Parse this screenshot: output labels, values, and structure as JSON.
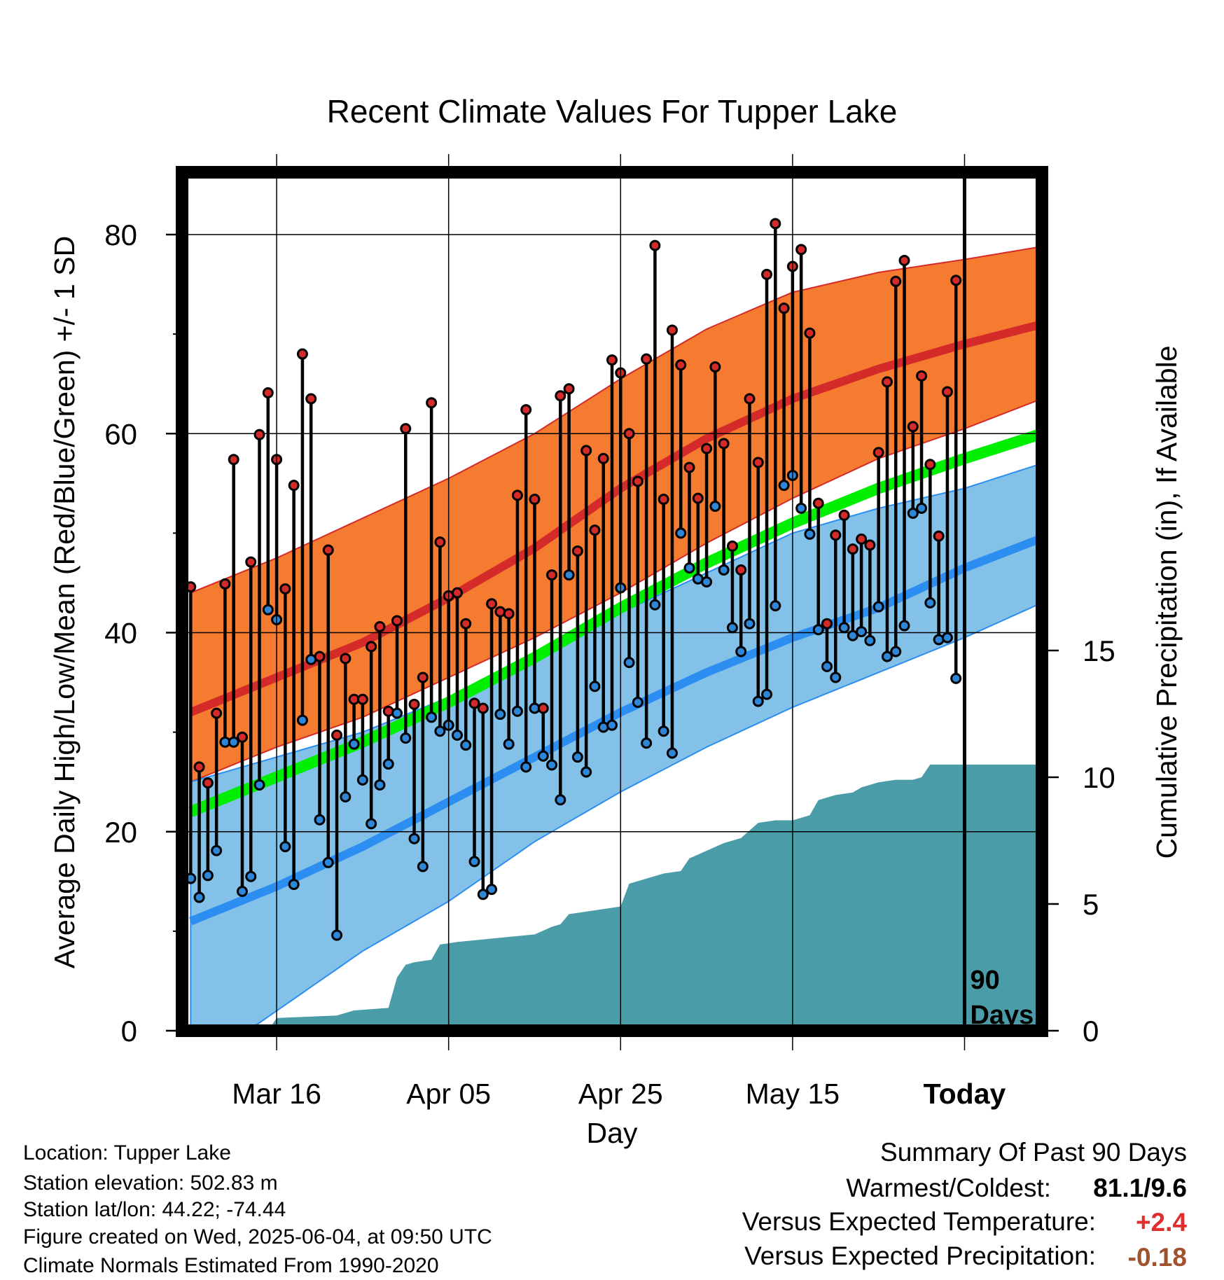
{
  "chart_data": {
    "type": "line",
    "title": "Recent Climate Values For Tupper Lake",
    "xlabel": "Day",
    "ylabel": "Average Daily High/Low/Mean (Red/Blue/Green) +/- 1 SD",
    "y2label": "Cumulative Precipitation (in), If Available",
    "ylim": [
      0,
      80
    ],
    "y2lim": [
      0,
      15
    ],
    "yticks": [
      "0",
      "20",
      "40",
      "60",
      "80"
    ],
    "y2ticks": [
      "0",
      "5",
      "10",
      "15"
    ],
    "xtick_labels": [
      "Mar 16",
      "Apr 05",
      "Apr 25",
      "May 15",
      "Today"
    ],
    "xtick_days": [
      -80,
      -60,
      -40,
      -20,
      0
    ],
    "x_range_days": [
      -91,
      9
    ],
    "today_marker": "90\nDays",
    "grid": true,
    "colors": {
      "high_sd_band": "#f47b2f",
      "high_mean": "#d42a2a",
      "low_sd_band": "#83c1e8",
      "low_mean": "#2b8ef0",
      "mean_temp": "#00ee00",
      "precip": "#4a9ca8",
      "high_point": "#d42a2a",
      "low_point": "#2e86d8"
    },
    "normal_high": {
      "days": [
        -90,
        -80,
        -70,
        -60,
        -50,
        -40,
        -30,
        -20,
        -10,
        0,
        9
      ],
      "mean": [
        32,
        35.5,
        39,
        43.5,
        48.5,
        54.5,
        59.5,
        63.5,
        66.5,
        69,
        71
      ],
      "upper": [
        44,
        47.5,
        51.5,
        55.5,
        60,
        65.5,
        70.5,
        74.2,
        76.2,
        77.5,
        78.8
      ],
      "lower": [
        25,
        28.5,
        31.5,
        35.5,
        39.5,
        44,
        49,
        53.5,
        57.5,
        60.5,
        63.5
      ]
    },
    "normal_mean": {
      "days": [
        -90,
        -80,
        -70,
        -60,
        -50,
        -40,
        -30,
        -20,
        -10,
        0,
        9
      ],
      "values": [
        22,
        25.5,
        29,
        33,
        37.5,
        42.5,
        47,
        51,
        54.5,
        57.5,
        60
      ]
    },
    "normal_low": {
      "days": [
        -90,
        -80,
        -70,
        -60,
        -50,
        -40,
        -30,
        -20,
        -10,
        0,
        9
      ],
      "mean": [
        11,
        14.5,
        18.5,
        23,
        27.5,
        32,
        36,
        39.5,
        42.5,
        46.5,
        49.5
      ],
      "upper": [
        25,
        27.5,
        30,
        33.5,
        37.5,
        42,
        46,
        50,
        52.5,
        54.5,
        57
      ],
      "lower": [
        -4,
        2,
        8,
        13,
        19,
        24,
        28.5,
        32.5,
        36,
        39.5,
        43
      ]
    },
    "daily": [
      {
        "d": -90,
        "hi": 44.6,
        "lo": 15.3
      },
      {
        "d": -89,
        "hi": 26.5,
        "lo": 13.4
      },
      {
        "d": -88,
        "hi": 24.9,
        "lo": 15.6
      },
      {
        "d": -87,
        "hi": 31.9,
        "lo": 18.1
      },
      {
        "d": -86,
        "hi": 44.9,
        "lo": 29.0
      },
      {
        "d": -85,
        "hi": 57.4,
        "lo": 29.0
      },
      {
        "d": -84,
        "hi": 29.5,
        "lo": 14.0
      },
      {
        "d": -83,
        "hi": 47.1,
        "lo": 15.5
      },
      {
        "d": -82,
        "hi": 59.9,
        "lo": 24.7
      },
      {
        "d": -81,
        "hi": 64.1,
        "lo": 42.3
      },
      {
        "d": -80,
        "hi": 57.4,
        "lo": 41.3
      },
      {
        "d": -79,
        "hi": 44.4,
        "lo": 18.5
      },
      {
        "d": -78,
        "hi": 54.8,
        "lo": 14.7
      },
      {
        "d": -77,
        "hi": 68.0,
        "lo": 31.2
      },
      {
        "d": -76,
        "hi": 63.5,
        "lo": 37.3
      },
      {
        "d": -75,
        "hi": 37.6,
        "lo": 21.2
      },
      {
        "d": -74,
        "hi": 48.3,
        "lo": 16.9
      },
      {
        "d": -73,
        "hi": 29.7,
        "lo": 9.6
      },
      {
        "d": -72,
        "hi": 37.4,
        "lo": 23.5
      },
      {
        "d": -71,
        "hi": 33.3,
        "lo": 28.8
      },
      {
        "d": -70,
        "hi": 33.3,
        "lo": 25.2
      },
      {
        "d": -69,
        "hi": 38.6,
        "lo": 20.8
      },
      {
        "d": -68,
        "hi": 40.6,
        "lo": 24.7
      },
      {
        "d": -67,
        "hi": 32.1,
        "lo": 26.8
      },
      {
        "d": -66,
        "hi": 41.2,
        "lo": 31.9
      },
      {
        "d": -65,
        "hi": 60.5,
        "lo": 29.4
      },
      {
        "d": -64,
        "hi": 32.8,
        "lo": 19.3
      },
      {
        "d": -63,
        "hi": 35.5,
        "lo": 16.5
      },
      {
        "d": -62,
        "hi": 63.1,
        "lo": 31.5
      },
      {
        "d": -61,
        "hi": 49.1,
        "lo": 30.1
      },
      {
        "d": -60,
        "hi": 43.7,
        "lo": 30.7
      },
      {
        "d": -59,
        "hi": 44.0,
        "lo": 29.7
      },
      {
        "d": -58,
        "hi": 40.9,
        "lo": 28.7
      },
      {
        "d": -57,
        "hi": 32.9,
        "lo": 17.0
      },
      {
        "d": -56,
        "hi": 32.4,
        "lo": 13.7
      },
      {
        "d": -55,
        "hi": 42.9,
        "lo": 14.2
      },
      {
        "d": -54,
        "hi": 42.1,
        "lo": 31.8
      },
      {
        "d": -53,
        "hi": 41.9,
        "lo": 28.8
      },
      {
        "d": -52,
        "hi": 53.8,
        "lo": 32.1
      },
      {
        "d": -51,
        "hi": 62.4,
        "lo": 26.5
      },
      {
        "d": -50,
        "hi": 53.4,
        "lo": 32.4
      },
      {
        "d": -49,
        "hi": 32.4,
        "lo": 27.6
      },
      {
        "d": -48,
        "hi": 45.8,
        "lo": 26.7
      },
      {
        "d": -47,
        "hi": 63.8,
        "lo": 23.2
      },
      {
        "d": -46,
        "hi": 64.5,
        "lo": 45.8
      },
      {
        "d": -45,
        "hi": 48.2,
        "lo": 27.5
      },
      {
        "d": -44,
        "hi": 58.3,
        "lo": 26.0
      },
      {
        "d": -43,
        "hi": 50.3,
        "lo": 34.6
      },
      {
        "d": -42,
        "hi": 57.5,
        "lo": 30.5
      },
      {
        "d": -41,
        "hi": 67.4,
        "lo": 30.7
      },
      {
        "d": -40,
        "hi": 66.1,
        "lo": 44.5
      },
      {
        "d": -39,
        "hi": 60.0,
        "lo": 37.0
      },
      {
        "d": -38,
        "hi": 55.2,
        "lo": 33.0
      },
      {
        "d": -37,
        "hi": 67.5,
        "lo": 28.9
      },
      {
        "d": -36,
        "hi": 78.9,
        "lo": 42.8
      },
      {
        "d": -35,
        "hi": 53.4,
        "lo": 30.1
      },
      {
        "d": -34,
        "hi": 70.4,
        "lo": 27.9
      },
      {
        "d": -33,
        "hi": 66.9,
        "lo": 50.0
      },
      {
        "d": -32,
        "hi": 56.6,
        "lo": 46.5
      },
      {
        "d": -31,
        "hi": 53.5,
        "lo": 45.4
      },
      {
        "d": -30,
        "hi": 58.5,
        "lo": 45.1
      },
      {
        "d": -29,
        "hi": 66.7,
        "lo": 52.7
      },
      {
        "d": -28,
        "hi": 59.0,
        "lo": 46.3
      },
      {
        "d": -27,
        "hi": 48.7,
        "lo": 40.5
      },
      {
        "d": -26,
        "hi": 46.3,
        "lo": 38.1
      },
      {
        "d": -25,
        "hi": 63.5,
        "lo": 40.9
      },
      {
        "d": -24,
        "hi": 57.1,
        "lo": 33.1
      },
      {
        "d": -23,
        "hi": 76.0,
        "lo": 33.8
      },
      {
        "d": -22,
        "hi": 81.1,
        "lo": 42.7
      },
      {
        "d": -21,
        "hi": 72.6,
        "lo": 54.8
      },
      {
        "d": -20,
        "hi": 76.8,
        "lo": 55.8
      },
      {
        "d": -19,
        "hi": 78.5,
        "lo": 52.5
      },
      {
        "d": -18,
        "hi": 70.1,
        "lo": 49.9
      },
      {
        "d": -17,
        "hi": 53.0,
        "lo": 40.3
      },
      {
        "d": -16,
        "hi": 40.9,
        "lo": 36.6
      },
      {
        "d": -15,
        "hi": 49.8,
        "lo": 35.5
      },
      {
        "d": -14,
        "hi": 51.8,
        "lo": 40.5
      },
      {
        "d": -13,
        "hi": 48.4,
        "lo": 39.7
      },
      {
        "d": -12,
        "hi": 49.4,
        "lo": 40.1
      },
      {
        "d": -11,
        "hi": 48.8,
        "lo": 39.2
      },
      {
        "d": -10,
        "hi": 58.1,
        "lo": 42.6
      },
      {
        "d": -9,
        "hi": 65.2,
        "lo": 37.6
      },
      {
        "d": -8,
        "hi": 75.3,
        "lo": 38.1
      },
      {
        "d": -7,
        "hi": 77.4,
        "lo": 40.7
      },
      {
        "d": -6,
        "hi": 60.7,
        "lo": 52.0
      },
      {
        "d": -5,
        "hi": 65.8,
        "lo": 52.5
      },
      {
        "d": -4,
        "hi": 56.9,
        "lo": 43.0
      },
      {
        "d": -3,
        "hi": 49.7,
        "lo": 39.3
      },
      {
        "d": -2,
        "hi": 64.2,
        "lo": 39.5
      },
      {
        "d": -1,
        "hi": 75.4,
        "lo": 35.4
      }
    ],
    "precip_cumulative": {
      "days": [
        -90,
        -81,
        -80,
        -73,
        -71,
        -67,
        -66,
        -65,
        -64,
        -62,
        -61,
        -59,
        -56,
        -53,
        -50,
        -48,
        -47,
        -46,
        -44,
        -42,
        -40,
        -39,
        -37,
        -35,
        -33,
        -32,
        -30,
        -28,
        -26,
        -24,
        -22,
        -20,
        -18,
        -17,
        -15,
        -13,
        -12,
        -11,
        -10,
        -8,
        -6,
        -5,
        -4,
        -2,
        0,
        9
      ],
      "values": [
        0,
        0,
        0.5,
        0.6,
        0.8,
        0.9,
        2.1,
        2.6,
        2.7,
        2.8,
        3.4,
        3.5,
        3.6,
        3.7,
        3.8,
        4.1,
        4.2,
        4.6,
        4.7,
        4.8,
        4.9,
        5.8,
        6.0,
        6.2,
        6.3,
        6.8,
        7.1,
        7.4,
        7.6,
        8.2,
        8.3,
        8.3,
        8.5,
        9.1,
        9.3,
        9.4,
        9.6,
        9.7,
        9.8,
        9.9,
        9.9,
        10.0,
        10.5,
        10.5,
        10.5,
        10.5
      ]
    }
  },
  "info": {
    "location": "Location: Tupper Lake",
    "elevation": "Station elevation: 502.83 m",
    "latlon": "Station lat/lon: 44.22; -74.44",
    "created": "Figure created on Wed, 2025-06-04, at 09:50 UTC",
    "normals": "Climate Normals Estimated From 1990-2020"
  },
  "summary": {
    "heading": "Summary Of Past 90 Days",
    "warmest_label": "Warmest/Coldest:",
    "warmest_value": "81.1/9.6",
    "temp_label": "Versus Expected Temperature:",
    "temp_value": "+2.4",
    "temp_color": "#e02d2d",
    "precip_label": "Versus Expected Precipitation:",
    "precip_value": "-0.18",
    "precip_color": "#a0522d"
  }
}
